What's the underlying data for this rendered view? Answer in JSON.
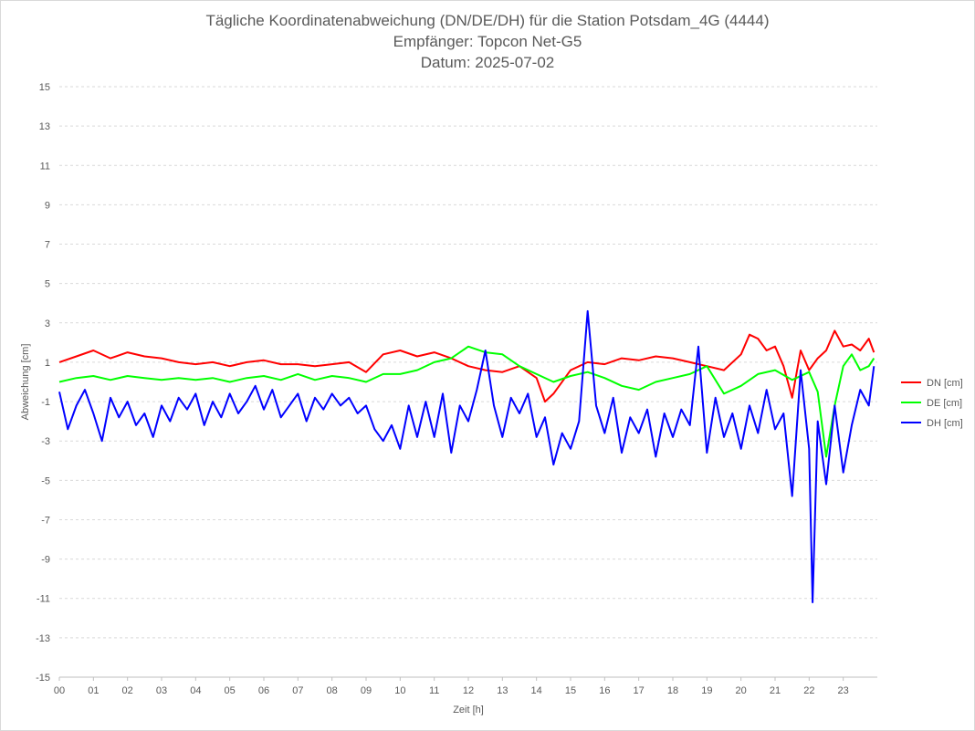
{
  "chart_data": {
    "type": "line",
    "title": "Tägliche Koordinatenabweichung (DN/DE/DH) für die Station Potsdam_4G (4444)",
    "subtitle_1": "Empfänger: Topcon Net-G5",
    "subtitle_2": "Datum: 2025-07-02",
    "xlabel": "Zeit [h]",
    "ylabel": "Abweichung [cm]",
    "xlim": [
      0,
      24
    ],
    "ylim": [
      -15,
      15
    ],
    "x_ticks": [
      "00",
      "01",
      "02",
      "03",
      "04",
      "05",
      "06",
      "07",
      "08",
      "09",
      "10",
      "11",
      "12",
      "13",
      "14",
      "15",
      "16",
      "17",
      "18",
      "19",
      "20",
      "21",
      "22",
      "23"
    ],
    "y_ticks": [
      15,
      13,
      11,
      9,
      7,
      5,
      3,
      1,
      -1,
      -3,
      -5,
      -7,
      -9,
      -11,
      -13,
      -15
    ],
    "grid": "horizontal dashed",
    "legend_position": "right",
    "series": [
      {
        "name": "DN [cm]",
        "color": "#ff0000",
        "x": [
          0,
          0.5,
          1,
          1.5,
          2,
          2.5,
          3,
          3.5,
          4,
          4.5,
          5,
          5.5,
          6,
          6.5,
          7,
          7.5,
          8,
          8.5,
          9,
          9.5,
          10,
          10.5,
          11,
          11.5,
          12,
          12.5,
          13,
          13.5,
          14,
          14.25,
          14.5,
          15,
          15.5,
          16,
          16.5,
          17,
          17.5,
          18,
          18.5,
          19,
          19.5,
          20,
          20.25,
          20.5,
          20.75,
          21,
          21.25,
          21.5,
          21.75,
          22,
          22.25,
          22.5,
          22.75,
          23,
          23.25,
          23.5,
          23.75,
          23.9
        ],
        "y": [
          1.0,
          1.3,
          1.6,
          1.2,
          1.5,
          1.3,
          1.2,
          1.0,
          0.9,
          1.0,
          0.8,
          1.0,
          1.1,
          0.9,
          0.9,
          0.8,
          0.9,
          1.0,
          0.5,
          1.4,
          1.6,
          1.3,
          1.5,
          1.2,
          0.8,
          0.6,
          0.5,
          0.8,
          0.2,
          -1.0,
          -0.6,
          0.6,
          1.0,
          0.9,
          1.2,
          1.1,
          1.3,
          1.2,
          1.0,
          0.8,
          0.6,
          1.4,
          2.4,
          2.2,
          1.6,
          1.8,
          0.8,
          -0.8,
          1.6,
          0.6,
          1.2,
          1.6,
          2.6,
          1.8,
          1.9,
          1.6,
          2.2,
          1.5
        ]
      },
      {
        "name": "DE [cm]",
        "color": "#00ff00",
        "x": [
          0,
          0.5,
          1,
          1.5,
          2,
          2.5,
          3,
          3.5,
          4,
          4.5,
          5,
          5.5,
          6,
          6.5,
          7,
          7.5,
          8,
          8.5,
          9,
          9.5,
          10,
          10.5,
          11,
          11.5,
          12,
          12.5,
          13,
          13.5,
          14,
          14.5,
          15,
          15.5,
          16,
          16.5,
          17,
          17.5,
          18,
          18.5,
          19,
          19.5,
          20,
          20.5,
          21,
          21.5,
          22,
          22.25,
          22.5,
          22.75,
          23,
          23.25,
          23.5,
          23.75,
          23.9
        ],
        "y": [
          0.0,
          0.2,
          0.3,
          0.1,
          0.3,
          0.2,
          0.1,
          0.2,
          0.1,
          0.2,
          0.0,
          0.2,
          0.3,
          0.1,
          0.4,
          0.1,
          0.3,
          0.2,
          0.0,
          0.4,
          0.4,
          0.6,
          1.0,
          1.2,
          1.8,
          1.5,
          1.4,
          0.8,
          0.4,
          0.0,
          0.3,
          0.5,
          0.2,
          -0.2,
          -0.4,
          0.0,
          0.2,
          0.4,
          0.8,
          -0.6,
          -0.2,
          0.4,
          0.6,
          0.1,
          0.5,
          -0.5,
          -3.8,
          -1.2,
          0.8,
          1.4,
          0.6,
          0.8,
          1.2
        ]
      },
      {
        "name": "DH [cm]",
        "color": "#0000ff",
        "x": [
          0,
          0.25,
          0.5,
          0.75,
          1,
          1.25,
          1.5,
          1.75,
          2,
          2.25,
          2.5,
          2.75,
          3,
          3.25,
          3.5,
          3.75,
          4,
          4.25,
          4.5,
          4.75,
          5,
          5.25,
          5.5,
          5.75,
          6,
          6.25,
          6.5,
          6.75,
          7,
          7.25,
          7.5,
          7.75,
          8,
          8.25,
          8.5,
          8.75,
          9,
          9.25,
          9.5,
          9.75,
          10,
          10.25,
          10.5,
          10.75,
          11,
          11.25,
          11.5,
          11.75,
          12,
          12.25,
          12.5,
          12.75,
          13,
          13.25,
          13.5,
          13.75,
          14,
          14.25,
          14.5,
          14.75,
          15,
          15.25,
          15.5,
          15.75,
          16,
          16.25,
          16.5,
          16.75,
          17,
          17.25,
          17.5,
          17.75,
          18,
          18.25,
          18.5,
          18.75,
          19,
          19.25,
          19.5,
          19.75,
          20,
          20.25,
          20.5,
          20.75,
          21,
          21.25,
          21.5,
          21.75,
          22,
          22.1,
          22.25,
          22.5,
          22.75,
          23,
          23.25,
          23.5,
          23.75,
          23.9
        ],
        "y": [
          -0.5,
          -2.4,
          -1.2,
          -0.4,
          -1.6,
          -3.0,
          -0.8,
          -1.8,
          -1.0,
          -2.2,
          -1.6,
          -2.8,
          -1.2,
          -2.0,
          -0.8,
          -1.4,
          -0.6,
          -2.2,
          -1.0,
          -1.8,
          -0.6,
          -1.6,
          -1.0,
          -0.2,
          -1.4,
          -0.4,
          -1.8,
          -1.2,
          -0.6,
          -2.0,
          -0.8,
          -1.4,
          -0.6,
          -1.2,
          -0.8,
          -1.6,
          -1.2,
          -2.4,
          -3.0,
          -2.2,
          -3.4,
          -1.2,
          -2.8,
          -1.0,
          -2.8,
          -0.6,
          -3.6,
          -1.2,
          -2.0,
          -0.4,
          1.6,
          -1.2,
          -2.8,
          -0.8,
          -1.6,
          -0.6,
          -2.8,
          -1.8,
          -4.2,
          -2.6,
          -3.4,
          -2.0,
          3.6,
          -1.2,
          -2.6,
          -0.8,
          -3.6,
          -1.8,
          -2.6,
          -1.4,
          -3.8,
          -1.6,
          -2.8,
          -1.4,
          -2.2,
          1.8,
          -3.6,
          -0.8,
          -2.8,
          -1.6,
          -3.4,
          -1.2,
          -2.6,
          -0.4,
          -2.4,
          -1.6,
          -5.8,
          0.6,
          -3.4,
          -11.2,
          -2.0,
          -5.2,
          -1.2,
          -4.6,
          -2.2,
          -0.4,
          -1.2,
          0.8
        ]
      }
    ]
  }
}
